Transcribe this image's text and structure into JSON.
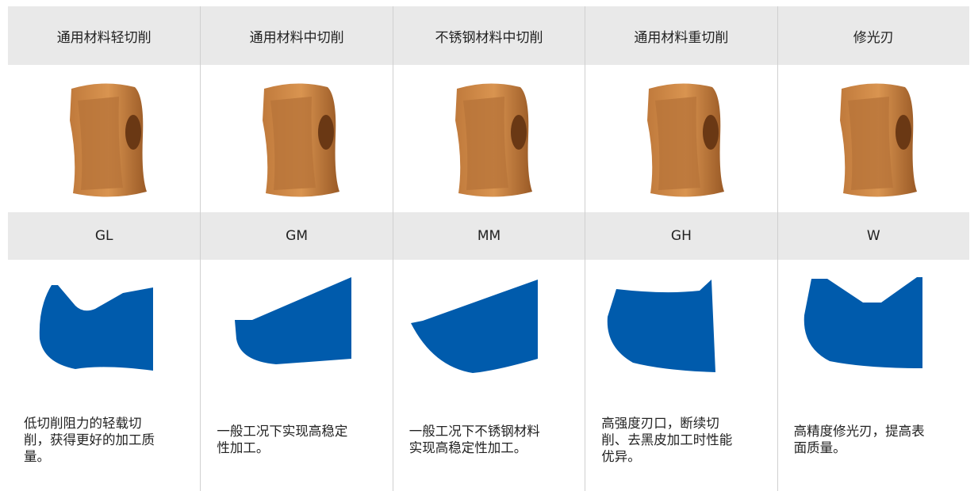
{
  "columns": [
    {
      "header": "通用材料轻切削",
      "code": "GL",
      "description": "低切削阻力的轻载切削，获得更好的加工质量。"
    },
    {
      "header": "通用材料中切削",
      "code": "GM",
      "description": "一般工况下实现高稳定性加工。"
    },
    {
      "header": "不锈钢材料中切削",
      "code": "MM",
      "description": "一般工况下不锈钢材料实现高稳定性加工。"
    },
    {
      "header": "通用材料重切削",
      "code": "GH",
      "description": "高强度刃口，断续切削、去黑皮加工时性能优异。"
    },
    {
      "header": "修光刃",
      "code": "W",
      "description": "高精度修光刃，提高表面质量。"
    }
  ]
}
